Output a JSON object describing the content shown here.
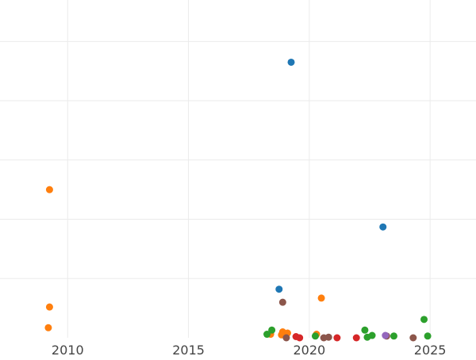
{
  "chart_data": {
    "type": "scatter",
    "title": "",
    "xlabel": "",
    "ylabel": "",
    "xlim": [
      2007.2,
      2026.9
    ],
    "ylim": [
      0,
      5.7
    ],
    "xticks": [
      2010,
      2015,
      2020,
      2025
    ],
    "x_tick_labels": [
      "2010",
      "2015",
      "2020",
      "2025"
    ],
    "y_gridlines": [
      1,
      2,
      3,
      4,
      5
    ],
    "grid": true,
    "legend": "none",
    "series": [
      {
        "color": "#1f77b4",
        "points": [
          [
            2019.25,
            4.65
          ],
          [
            2023.05,
            1.87
          ],
          [
            2018.75,
            0.82
          ]
        ]
      },
      {
        "color": "#ff7f0e",
        "points": [
          [
            2009.25,
            2.5
          ],
          [
            2009.25,
            0.52
          ],
          [
            2009.2,
            0.17
          ],
          [
            2020.5,
            0.67
          ],
          [
            2018.4,
            0.06
          ],
          [
            2018.9,
            0.1
          ],
          [
            2019.1,
            0.08
          ],
          [
            2020.3,
            0.06
          ],
          [
            2018.85,
            0.05
          ]
        ]
      },
      {
        "color": "#2ca02c",
        "points": [
          [
            2018.25,
            0.06
          ],
          [
            2018.45,
            0.13
          ],
          [
            2020.25,
            0.03
          ],
          [
            2022.3,
            0.13
          ],
          [
            2022.4,
            0.01
          ],
          [
            2022.6,
            0.04
          ],
          [
            2023.5,
            0.03
          ],
          [
            2024.75,
            0.31
          ],
          [
            2024.9,
            0.03
          ]
        ]
      },
      {
        "color": "#d62728",
        "points": [
          [
            2019.45,
            0.02
          ],
          [
            2019.6,
            0.0
          ],
          [
            2021.15,
            0.0
          ],
          [
            2021.95,
            0.0
          ]
        ]
      },
      {
        "color": "#8c564b",
        "points": [
          [
            2018.9,
            0.6
          ],
          [
            2020.6,
            0.0
          ],
          [
            2020.8,
            0.01
          ],
          [
            2023.2,
            0.03
          ],
          [
            2024.3,
            0.0
          ],
          [
            2019.05,
            0.0
          ]
        ]
      },
      {
        "color": "#9467bd",
        "points": [
          [
            2023.15,
            0.04
          ]
        ]
      }
    ]
  }
}
